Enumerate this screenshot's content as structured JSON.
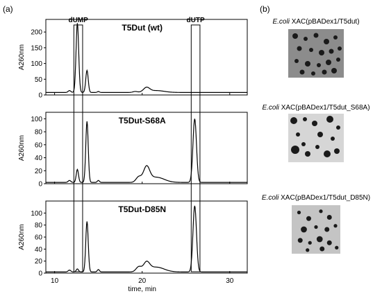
{
  "panels": {
    "a": "(a)",
    "b": "(b)"
  },
  "chart_data": {
    "type": "line",
    "xlabel": "time, min",
    "ylabel": "A260nm",
    "xlim": [
      9,
      32
    ],
    "x_ticks": [
      10,
      20,
      30
    ],
    "grid": false,
    "highlight_boxes": [
      {
        "label": "dUMP",
        "x_range": [
          12.2,
          13.2
        ]
      },
      {
        "label": "dUTP",
        "x_range": [
          25.6,
          26.6
        ]
      }
    ],
    "subplots": [
      {
        "title": "T5Dut (wt)",
        "ylim": [
          0,
          240
        ],
        "y_ticks": [
          0,
          50,
          100,
          150,
          200
        ],
        "peaks": [
          {
            "x": 11.7,
            "height": 6,
            "width": 0.15
          },
          {
            "x": 12.6,
            "height": 220,
            "width": 0.15
          },
          {
            "x": 13.7,
            "height": 70,
            "width": 0.14
          },
          {
            "x": 15.0,
            "height": 3,
            "width": 0.12
          },
          {
            "x": 19.2,
            "height": 3,
            "width": 0.25
          },
          {
            "x": 20.5,
            "height": 14,
            "width": 0.35
          },
          {
            "x": 21.6,
            "height": 6,
            "width": 0.9
          }
        ],
        "baseline": 8
      },
      {
        "title": "T5Dut-S68A",
        "ylim": [
          0,
          110
        ],
        "y_ticks": [
          0,
          20,
          40,
          60,
          80,
          100
        ],
        "peaks": [
          {
            "x": 11.7,
            "height": 3,
            "width": 0.15
          },
          {
            "x": 12.6,
            "height": 20,
            "width": 0.13
          },
          {
            "x": 13.7,
            "height": 94,
            "width": 0.14
          },
          {
            "x": 15.0,
            "height": 3,
            "width": 0.12
          },
          {
            "x": 19.6,
            "height": 8,
            "width": 0.3
          },
          {
            "x": 20.5,
            "height": 22,
            "width": 0.35
          },
          {
            "x": 21.6,
            "height": 8,
            "width": 0.9
          },
          {
            "x": 26.0,
            "height": 98,
            "width": 0.2
          }
        ],
        "baseline": 2
      },
      {
        "title": "T5Dut-D85N",
        "ylim": [
          0,
          120
        ],
        "y_ticks": [
          0,
          20,
          40,
          60,
          80,
          100
        ],
        "peaks": [
          {
            "x": 11.7,
            "height": 3,
            "width": 0.15
          },
          {
            "x": 12.6,
            "height": 5,
            "width": 0.13
          },
          {
            "x": 13.7,
            "height": 84,
            "width": 0.14
          },
          {
            "x": 15.0,
            "height": 4,
            "width": 0.12
          },
          {
            "x": 19.6,
            "height": 8,
            "width": 0.3
          },
          {
            "x": 20.5,
            "height": 14,
            "width": 0.35
          },
          {
            "x": 21.6,
            "height": 8,
            "width": 0.9
          },
          {
            "x": 26.0,
            "height": 110,
            "width": 0.2
          }
        ],
        "baseline": 2
      }
    ]
  },
  "plates": [
    {
      "species": "E.coli",
      "strain": "XAC(pBADex1/T5dut)",
      "shade": "#8c8c8c"
    },
    {
      "species": "E.coli",
      "strain": "XAC(pBADex1/T5dut_S68A)",
      "shade": "#d6d6d6"
    },
    {
      "species": "E.coli",
      "strain": "XAC(pBADex1/T5dut_D85N)",
      "shade": "#c4c4c4"
    }
  ]
}
